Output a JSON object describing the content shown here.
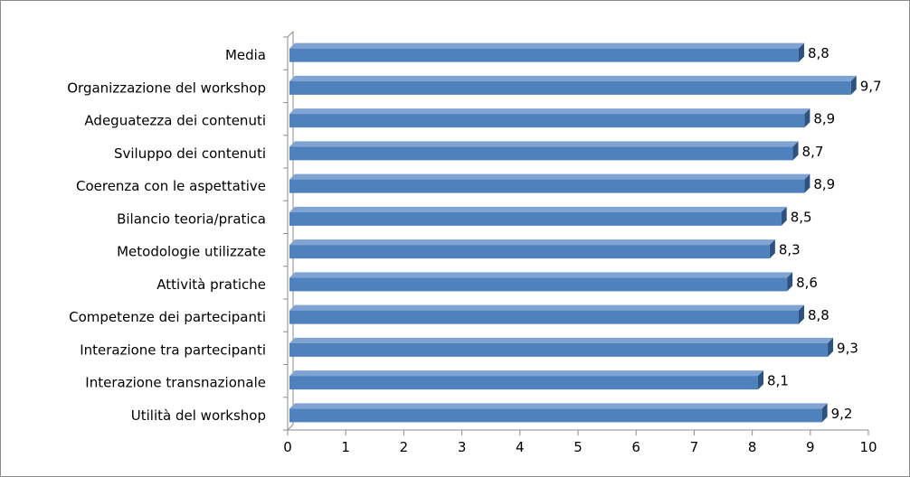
{
  "chart_data": {
    "type": "bar",
    "orientation": "horizontal",
    "style": "3d",
    "categories": [
      "Media",
      "Organizzazione del workshop",
      "Adeguatezza dei contenuti",
      "Sviluppo dei contenuti",
      "Coerenza con le aspettative",
      "Bilancio teoria/pratica",
      "Metodologie utilizzate",
      "Attività pratiche ",
      "Competenze dei partecipanti",
      "Interazione tra partecipanti",
      "Interazione transnazionale",
      "Utilità del workshop"
    ],
    "values": [
      8.8,
      9.7,
      8.9,
      8.7,
      8.9,
      8.5,
      8.3,
      8.6,
      8.8,
      9.3,
      8.1,
      9.2
    ],
    "value_labels": [
      "8,8",
      "9,7",
      "8,9",
      "8,7",
      "8,9",
      "8,5",
      "8,3",
      "8,6",
      "8,8",
      "9,3",
      "8,1",
      "9,2"
    ],
    "x_ticks": [
      0,
      1,
      2,
      3,
      4,
      5,
      6,
      7,
      8,
      9,
      10
    ],
    "xlim": [
      0,
      10
    ],
    "title": "",
    "xlabel": "",
    "ylabel": "",
    "grid": false,
    "legend": "none",
    "colors": {
      "bar_front": "#4f81bd",
      "bar_top": "#7fa3d3",
      "bar_end": "#2e527f",
      "axis": "#8c8c8c"
    }
  }
}
